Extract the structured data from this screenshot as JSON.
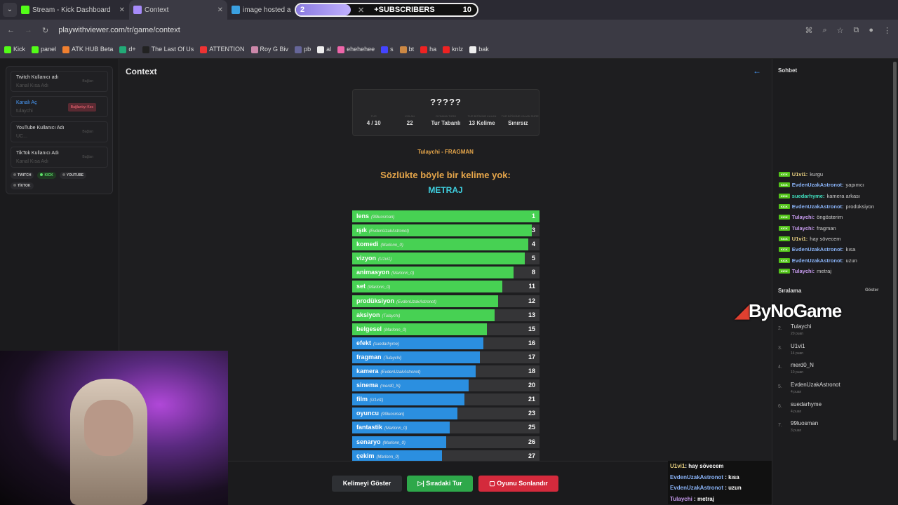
{
  "browser": {
    "tabs": [
      {
        "label": "Stream - Kick Dashboard",
        "color": "#53fc18"
      },
      {
        "label": "Context",
        "color": "#a78bfa"
      },
      {
        "label": "image hosted a",
        "color": "#3aa0e0"
      }
    ],
    "url": "playwithviewer.com/tr/game/context",
    "bookmarks": [
      "Kick",
      "panel",
      "ATK HUB Beta",
      "d+",
      "The Last Of Us",
      "ATTENTION",
      "Roy G Biv",
      "pb",
      "al",
      "ehehehee",
      "s",
      "bt",
      "ha",
      "knlz",
      "bak"
    ]
  },
  "subscribers": {
    "label": "+SUBSCRIBERS",
    "current": "2",
    "goal": "10",
    "progress": 0.2
  },
  "left": {
    "fields": [
      {
        "title": "Twitch Kullanıcı adı",
        "placeholder": "Kanal Kısa Adı",
        "button": "Bağlan"
      },
      {
        "title": "Kanalı Aç",
        "placeholder": "tulaychi",
        "button": "Bağlantıyı Kes"
      },
      {
        "title": "YouTube Kullanıcı Adı",
        "placeholder": "UC...",
        "button": "Bağlan"
      },
      {
        "title": "TikTok Kullanıcı Adı",
        "placeholder": "Kanal Kısa Adı",
        "button": "Bağlan"
      }
    ],
    "chips": [
      "TWITCH",
      "KICK",
      "YOUTUBE",
      "TİKTOK"
    ]
  },
  "main": {
    "title": "Context",
    "secret": "?????",
    "stats": [
      {
        "label": "TUR",
        "value": "4 / 10"
      },
      {
        "label": "KOLAN",
        "value": "22"
      },
      {
        "label": "OYNAMA TÜRÜ",
        "value": "Tur Tabanlı"
      },
      {
        "label": "TUR BİTİMİNE KALAN",
        "value": "13 Kelime"
      },
      {
        "label": "TUR BİTİMİNE KALAN SÜRE",
        "value": "Sınırsız"
      }
    ],
    "last_guess": "Tulaychi - FRAGMAN",
    "message": "Sözlükte böyle bir kelime yok:",
    "word": "METRAJ",
    "colors": {
      "close": "#47d153",
      "far": "#2b8fe0"
    },
    "guesses": [
      {
        "word": "lens",
        "user": "(99luosman)",
        "rank": 1,
        "tier": "close"
      },
      {
        "word": "ışık",
        "user": "(EvdenUzakAstronot)",
        "rank": 3,
        "tier": "close"
      },
      {
        "word": "komedi",
        "user": "(Marlonn_0)",
        "rank": 4,
        "tier": "close"
      },
      {
        "word": "vizyon",
        "user": "(U1vi1)",
        "rank": 5,
        "tier": "close"
      },
      {
        "word": "animasyon",
        "user": "(Marlonn_0)",
        "rank": 8,
        "tier": "close"
      },
      {
        "word": "set",
        "user": "(Marlonn_0)",
        "rank": 11,
        "tier": "close"
      },
      {
        "word": "prodüksiyon",
        "user": "(EvdenUzakAstronot)",
        "rank": 12,
        "tier": "close"
      },
      {
        "word": "aksiyon",
        "user": "(Tulaychi)",
        "rank": 13,
        "tier": "close"
      },
      {
        "word": "belgesel",
        "user": "(Marlonn_0)",
        "rank": 15,
        "tier": "close"
      },
      {
        "word": "efekt",
        "user": "(suedarhyme)",
        "rank": 16,
        "tier": "far"
      },
      {
        "word": "fragman",
        "user": "(Tulaychi)",
        "rank": 17,
        "tier": "far"
      },
      {
        "word": "kamera",
        "user": "(EvdenUzakAstronot)",
        "rank": 18,
        "tier": "far"
      },
      {
        "word": "sinema",
        "user": "(merd0_N)",
        "rank": 20,
        "tier": "far"
      },
      {
        "word": "film",
        "user": "(U1vi1)",
        "rank": 21,
        "tier": "far"
      },
      {
        "word": "oyuncu",
        "user": "(99luosman)",
        "rank": 23,
        "tier": "far"
      },
      {
        "word": "fantastik",
        "user": "(Marlonn_0)",
        "rank": 25,
        "tier": "far"
      },
      {
        "word": "senaryo",
        "user": "(Marlonn_0)",
        "rank": 26,
        "tier": "far"
      },
      {
        "word": "çekim",
        "user": "(Marlonn_0)",
        "rank": 27,
        "tier": "far"
      }
    ],
    "buttons": {
      "show": "Kelimeyi Göster",
      "next": "Sıradaki Tur",
      "end": "Oyunu Sonlandır"
    }
  },
  "right": {
    "chat_title": "Sohbet",
    "badge": "KICK",
    "chat": [
      {
        "user": "U1vi1:",
        "text": "kurgu",
        "color": "#e8d080"
      },
      {
        "user": "EvdenUzakAstronot:",
        "text": "yapımcı",
        "color": "#8ab4f8"
      },
      {
        "user": "suedarhyme:",
        "text": "kamera arkası",
        "color": "#40e0c0"
      },
      {
        "user": "EvdenUzakAstronot:",
        "text": "prodüksiyon",
        "color": "#8ab4f8"
      },
      {
        "user": "Tulaychi:",
        "text": "öngösterim",
        "color": "#c89cf0"
      },
      {
        "user": "Tulaychi:",
        "text": "fragman",
        "color": "#c89cf0"
      },
      {
        "user": "U1vi1:",
        "text": "hay sövecem",
        "color": "#e8d080"
      },
      {
        "user": "EvdenUzakAstronot:",
        "text": "kısa",
        "color": "#8ab4f8"
      },
      {
        "user": "EvdenUzakAstronot:",
        "text": "uzun",
        "color": "#8ab4f8"
      },
      {
        "user": "Tulaychi:",
        "text": "metraj",
        "color": "#c89cf0"
      }
    ],
    "leaderboard_title": "Sıralama",
    "leaderboard_toggle": "Göster",
    "leaderboard": [
      {
        "n": "2.",
        "name": "Tulaychi",
        "pts": "20 puan"
      },
      {
        "n": "3.",
        "name": "U1vi1",
        "pts": "14 puan"
      },
      {
        "n": "4.",
        "name": "merd0_N",
        "pts": "10 puan"
      },
      {
        "n": "5.",
        "name": "EvdenUzakAstronot",
        "pts": "4 puan"
      },
      {
        "n": "6.",
        "name": "suedarhyme",
        "pts": "4 puan"
      },
      {
        "n": "7.",
        "name": "99luosman",
        "pts": "3 puan"
      }
    ]
  },
  "overlay": {
    "logo": "ByNoGame",
    "chat": [
      {
        "user": "U1vi1",
        "text": ": hay sövecem",
        "color": "#e8d080"
      },
      {
        "user": "EvdenUzakAstronot",
        "text": " : kısa",
        "color": "#8ab4f8"
      },
      {
        "user": "EvdenUzakAstronot",
        "text": " : uzun",
        "color": "#8ab4f8"
      },
      {
        "user": "Tulaychi",
        "text": " : metraj",
        "color": "#c89cf0"
      }
    ]
  }
}
